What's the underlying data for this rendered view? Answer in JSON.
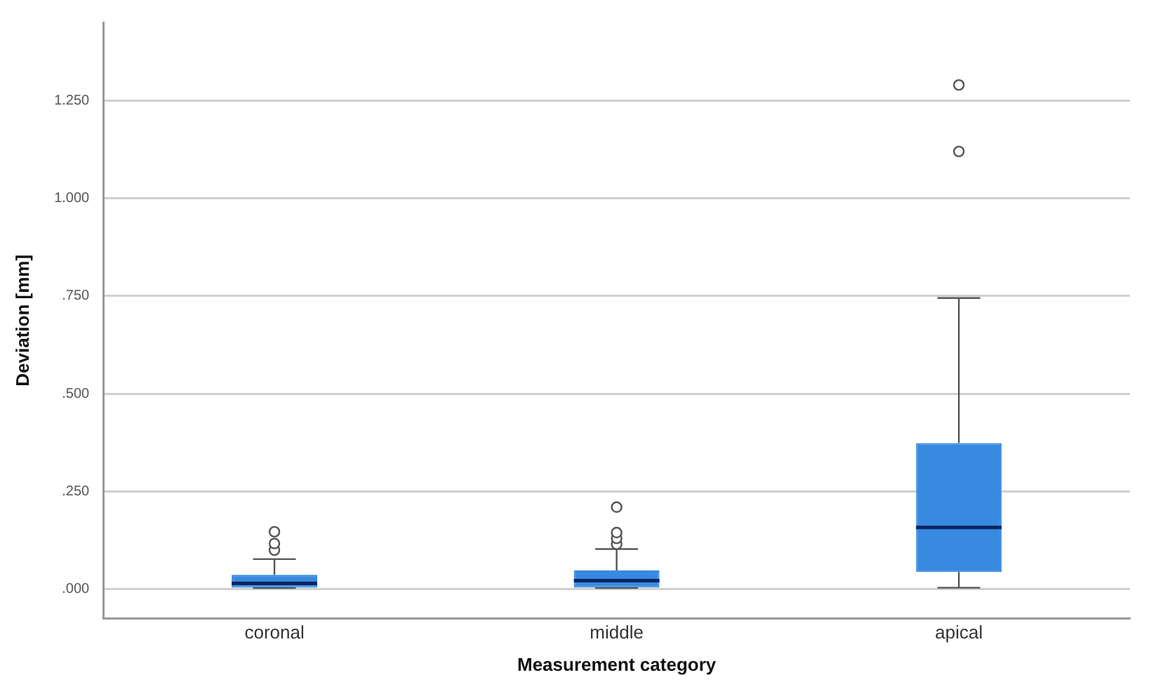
{
  "chart_data": {
    "type": "box",
    "xlabel": "Measurement category",
    "ylabel": "Deviation [mm]",
    "categories": [
      "coronal",
      "middle",
      "apical"
    ],
    "color": "#3889e0",
    "boxes": [
      {
        "low": 0.003,
        "q1": 0.004,
        "median": 0.015,
        "q3": 0.037,
        "high": 0.077,
        "outliers": [
          0.1,
          0.117,
          0.147
        ]
      },
      {
        "low": 0.003,
        "q1": 0.004,
        "median": 0.022,
        "q3": 0.048,
        "high": 0.103,
        "outliers": [
          0.115,
          0.13,
          0.145,
          0.21
        ]
      },
      {
        "low": 0.004,
        "q1": 0.044,
        "median": 0.158,
        "q3": 0.374,
        "high": 0.745,
        "outliers": [
          1.12,
          1.29
        ]
      }
    ],
    "ylim": [
      -0.075,
      1.45
    ],
    "yticks": [
      {
        "value": 0,
        "label": ".000"
      },
      {
        "value": 0.25,
        "label": ".250"
      },
      {
        "value": 0.5,
        "label": ".500"
      },
      {
        "value": 0.75,
        "label": ".750"
      },
      {
        "value": 1,
        "label": "1.000"
      },
      {
        "value": 1.25,
        "label": "1.250"
      }
    ],
    "grid": "y",
    "legend": false
  }
}
